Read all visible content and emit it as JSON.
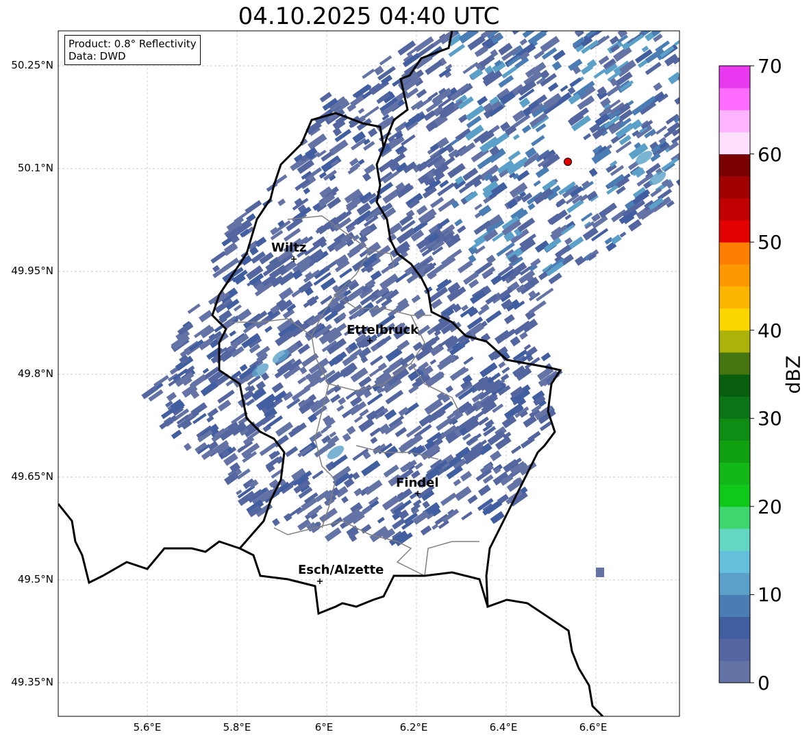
{
  "title": "04.10.2025 04:40 UTC",
  "info": {
    "product": "Product: 0.8° Reflectivity",
    "data": "Data: DWD"
  },
  "lat_ticks": [
    "50.25°N",
    "50.1°N",
    "49.95°N",
    "49.8°N",
    "49.65°N",
    "49.5°N",
    "49.35°N"
  ],
  "lon_ticks": [
    "5.6°E",
    "5.8°E",
    "6°E",
    "6.2°E",
    "6.4°E",
    "6.6°E"
  ],
  "colorbar": {
    "label": "dBZ",
    "ticks": [
      "0",
      "10",
      "20",
      "30",
      "40",
      "50",
      "60",
      "70"
    ],
    "colors": [
      "#6473a6",
      "#5366a0",
      "#415ea0",
      "#4b7db5",
      "#5aa0c8",
      "#64c0dc",
      "#64d6c4",
      "#3ed66e",
      "#10c818",
      "#12b818",
      "#10a010",
      "#0e8c14",
      "#0b7414",
      "#065e0e",
      "#457510",
      "#acb20a",
      "#fdd600",
      "#fdb600",
      "#fd9800",
      "#fd7e00",
      "#e20000",
      "#c00000",
      "#a00000",
      "#780000",
      "#ffe0ff",
      "#ffb4ff",
      "#ff6cff",
      "#e838f0"
    ]
  },
  "cities": [
    {
      "name": "Wiltz"
    },
    {
      "name": "Ettelbruck"
    },
    {
      "name": "Findel"
    },
    {
      "name": "Esch/Alzette"
    }
  ],
  "radar_site_color": "#e00000"
}
